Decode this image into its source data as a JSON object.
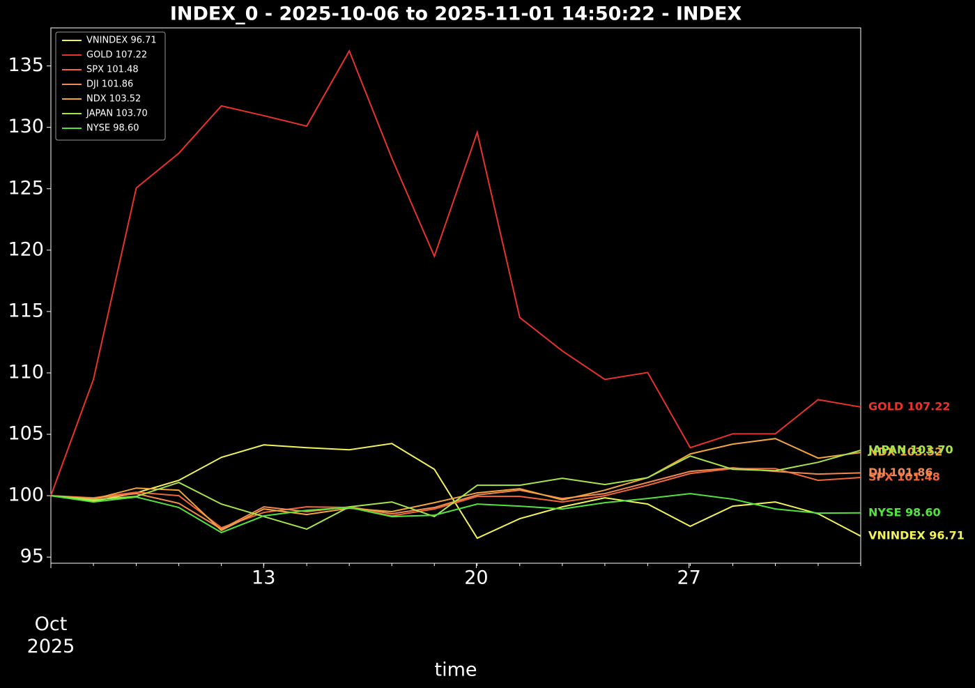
{
  "chart_data": {
    "type": "line",
    "title": "INDEX_0 - 2025-10-06 to 2025-11-01 14:50:22 - INDEX",
    "x_label": "time",
    "x": [
      6,
      7.4,
      8.81,
      10.21,
      11.61,
      13.01,
      14.42,
      15.82,
      17.22,
      18.62,
      20.03,
      21.43,
      22.83,
      24.23,
      25.64,
      27.04,
      28.44,
      29.84,
      31.25,
      32.65
    ],
    "xlim": [
      6,
      32.65
    ],
    "xticks": [
      {
        "value": 6,
        "label": "Oct\n2025"
      },
      13,
      20,
      27
    ],
    "ylim": [
      94.5,
      138.1
    ],
    "yticks": [
      95,
      100,
      105,
      110,
      115,
      120,
      125,
      130,
      135
    ],
    "legend": "upper left",
    "grid": false,
    "series": [
      {
        "name": "VNINDEX 96.71",
        "color": "#f2f25a",
        "values": [
          100,
          99.55,
          100.23,
          101.25,
          103.12,
          104.14,
          103.91,
          103.74,
          104.25,
          102.15,
          96.54,
          98.13,
          99.09,
          99.83,
          99.32,
          97.51,
          99.15,
          99.49,
          98.53,
          96.71
        ]
      },
      {
        "name": "GOLD 107.22",
        "color": "#e8322e",
        "values": [
          100,
          109.47,
          125.06,
          127.89,
          131.75,
          130.95,
          130.1,
          136.22,
          127.49,
          119.5,
          129.59,
          114.51,
          111.79,
          109.47,
          110.03,
          103.91,
          105.04,
          105.04,
          107.82,
          107.22
        ]
      },
      {
        "name": "SPX 101.48",
        "color": "#f0683a",
        "values": [
          100,
          99.83,
          100.28,
          100,
          97.39,
          98.64,
          99.09,
          99.04,
          98.36,
          98.92,
          99.94,
          99.94,
          99.49,
          100,
          100.85,
          101.81,
          102.21,
          102.21,
          101.25,
          101.48
        ]
      },
      {
        "name": "DJI 101.86",
        "color": "#f08a52",
        "values": [
          100,
          99.77,
          100.17,
          99.38,
          97.28,
          99.09,
          98.7,
          99.09,
          98.53,
          99.04,
          100.06,
          100.45,
          99.77,
          100.17,
          101.08,
          101.98,
          102.27,
          101.98,
          101.76,
          101.86
        ]
      },
      {
        "name": "NDX 103.52",
        "color": "#f2a640",
        "values": [
          100,
          99.72,
          100.62,
          100.45,
          97.17,
          98.92,
          98.47,
          98.98,
          98.7,
          99.43,
          100.23,
          100.57,
          99.66,
          100.45,
          101.47,
          103.4,
          104.2,
          104.65,
          103.06,
          103.52
        ]
      },
      {
        "name": "JAPAN 103.70",
        "color": "#a8e44c",
        "values": [
          100,
          99.66,
          99.94,
          101.08,
          99.32,
          98.3,
          97.28,
          99.09,
          99.49,
          98.3,
          100.85,
          100.85,
          101.42,
          100.91,
          101.47,
          103.23,
          102.15,
          102.04,
          102.72,
          103.7
        ]
      },
      {
        "name": "NYSE 98.60",
        "color": "#52e43c",
        "values": [
          100,
          99.49,
          99.89,
          99.04,
          97.0,
          98.36,
          98.81,
          99.04,
          98.3,
          98.41,
          99.32,
          99.15,
          98.92,
          99.43,
          99.77,
          100.17,
          99.72,
          98.92,
          98.58,
          98.6
        ]
      }
    ]
  }
}
